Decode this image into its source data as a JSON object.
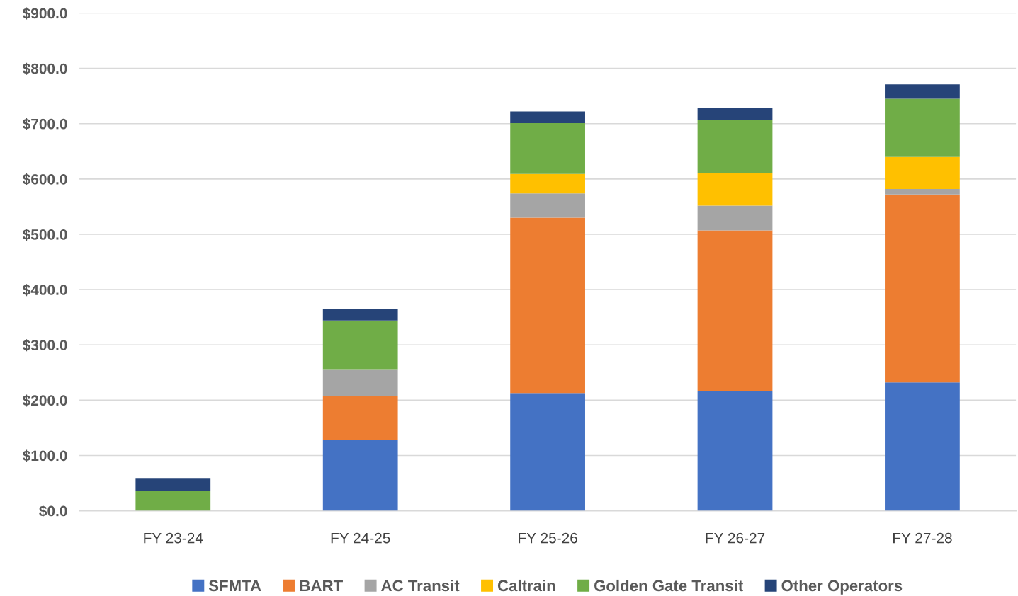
{
  "chart_data": {
    "type": "bar",
    "stacked": true,
    "categories": [
      "FY 23-24",
      "FY 24-25",
      "FY 25-26",
      "FY 26-27",
      "FY 27-28"
    ],
    "series": [
      {
        "name": "SFMTA",
        "color": "#4472c4",
        "values": [
          0,
          128,
          213,
          217,
          232
        ]
      },
      {
        "name": "BART",
        "color": "#ed7d31",
        "values": [
          0,
          80,
          317,
          290,
          340
        ]
      },
      {
        "name": "AC Transit",
        "color": "#a5a5a5",
        "values": [
          0,
          47,
          44,
          45,
          10
        ]
      },
      {
        "name": "Caltrain",
        "color": "#ffc000",
        "values": [
          0,
          0,
          35,
          58,
          58
        ]
      },
      {
        "name": "Golden Gate Transit",
        "color": "#70ad47",
        "values": [
          36,
          89,
          92,
          97,
          105
        ]
      },
      {
        "name": "Other Operators",
        "color": "#264478",
        "values": [
          22,
          21,
          21,
          22,
          26
        ]
      }
    ],
    "ylim": [
      0,
      900
    ],
    "yticks": [
      {
        "value": 0,
        "label": "$0.0"
      },
      {
        "value": 100,
        "label": "$100.0"
      },
      {
        "value": 200,
        "label": "$200.0"
      },
      {
        "value": 300,
        "label": "$300.0"
      },
      {
        "value": 400,
        "label": "$400.0"
      },
      {
        "value": 500,
        "label": "$500.0"
      },
      {
        "value": 600,
        "label": "$600.0"
      },
      {
        "value": 700,
        "label": "$700.0"
      },
      {
        "value": 800,
        "label": "$800.0"
      },
      {
        "value": 900,
        "label": "$900.0"
      }
    ],
    "grid": "y",
    "legend": "bottom"
  }
}
